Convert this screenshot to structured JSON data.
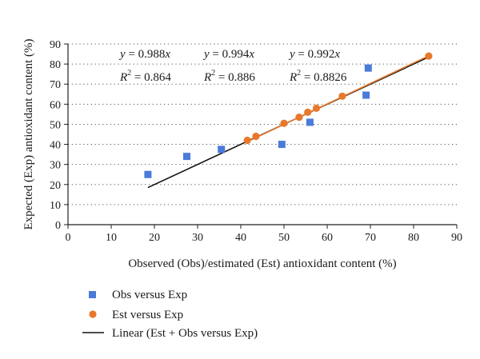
{
  "chart_data": {
    "type": "scatter",
    "title": "",
    "xlabel": "Observed (Obs)/estimated (Est) antioxidant content (%)",
    "ylabel": "Expected (Exp) antioxidant content (%)",
    "xlim": [
      0,
      90
    ],
    "ylim": [
      0,
      90
    ],
    "x_ticks": [
      0,
      10,
      20,
      30,
      40,
      50,
      60,
      70,
      80,
      90
    ],
    "y_ticks": [
      0,
      10,
      20,
      30,
      40,
      50,
      60,
      70,
      80,
      90
    ],
    "grid": "horizontal-dotted",
    "legend_position": "bottom",
    "series": [
      {
        "name": "Obs versus Exp",
        "marker": "square",
        "color": "#4a7bd8",
        "points": [
          {
            "x": 18.5,
            "y": 25
          },
          {
            "x": 27.5,
            "y": 34
          },
          {
            "x": 35.5,
            "y": 37.5
          },
          {
            "x": 49.5,
            "y": 40
          },
          {
            "x": 56,
            "y": 51
          },
          {
            "x": 69,
            "y": 64.5
          },
          {
            "x": 69.5,
            "y": 78
          }
        ]
      },
      {
        "name": "Est versus Exp",
        "marker": "circle",
        "color": "#e8782b",
        "points": [
          {
            "x": 41.5,
            "y": 42
          },
          {
            "x": 43.5,
            "y": 44
          },
          {
            "x": 50,
            "y": 50.5
          },
          {
            "x": 53.5,
            "y": 53.5
          },
          {
            "x": 55.5,
            "y": 56
          },
          {
            "x": 57.5,
            "y": 58
          },
          {
            "x": 63.5,
            "y": 64
          },
          {
            "x": 83.5,
            "y": 84
          }
        ]
      },
      {
        "name": "Linear (Est + Obs versus Exp)",
        "marker": "line",
        "color": "#111111",
        "points": [
          {
            "x": 18.5,
            "y": 18.5
          },
          {
            "x": 83.5,
            "y": 83.5
          }
        ]
      }
    ],
    "extra_lines": [
      {
        "color": "#e8782b",
        "points": [
          {
            "x": 41.5,
            "y": 41.3
          },
          {
            "x": 83.5,
            "y": 84.1
          }
        ]
      }
    ],
    "annotations": [
      {
        "eq_prefix": "y",
        "eq_rest": " = 0.988",
        "eq_var": "x",
        "r2_value": " = 0.864"
      },
      {
        "eq_prefix": "y",
        "eq_rest": " = 0.994",
        "eq_var": "x",
        "r2_value": " = 0.886"
      },
      {
        "eq_prefix": "y",
        "eq_rest": " = 0.992",
        "eq_var": "x",
        "r2_value": " = 0.8826"
      }
    ],
    "r2_label": "R",
    "r2_exp": "2"
  }
}
